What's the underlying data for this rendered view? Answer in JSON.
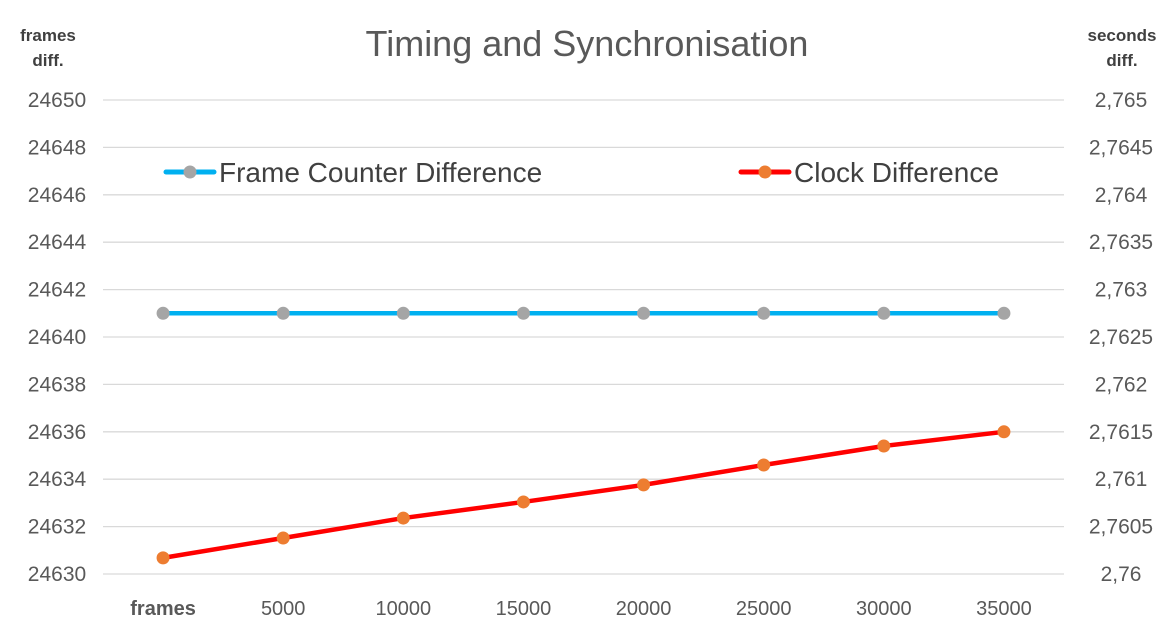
{
  "chart_data": {
    "type": "line",
    "title": "Timing and Synchronisation",
    "y_left_label": [
      "frames",
      "diff."
    ],
    "y_right_label": [
      "seconds",
      "diff."
    ],
    "categories": [
      "frames",
      "5000",
      "10000",
      "15000",
      "20000",
      "25000",
      "30000",
      "35000"
    ],
    "y_left": {
      "ylim": [
        24630,
        24650
      ],
      "ticks": [
        "24630",
        "24632",
        "24634",
        "24636",
        "24638",
        "24640",
        "24642",
        "24644",
        "24646",
        "24648",
        "24650"
      ]
    },
    "y_right": {
      "ylim": [
        2.76,
        2.765
      ],
      "ticks": [
        "2,76",
        "2,7605",
        "2,761",
        "2,7615",
        "2,762",
        "2,7625",
        "2,763",
        "2,7635",
        "2,764",
        "2,7645",
        "2,765"
      ]
    },
    "series": [
      {
        "name": "Frame Counter Difference",
        "axis": "left",
        "line_color": "#00b0f0",
        "marker_color": "#a5a5a5",
        "values": [
          24641,
          24641,
          24641,
          24641,
          24641,
          24641,
          24641,
          24641
        ]
      },
      {
        "name": "Clock Difference",
        "axis": "right",
        "line_color": "#ff0000",
        "marker_color": "#ed7d31",
        "values": [
          2.76017,
          2.76038,
          2.76059,
          2.76076,
          2.76094,
          2.76115,
          2.76135,
          2.7615
        ]
      }
    ],
    "grid": true,
    "legend_position": "top"
  }
}
